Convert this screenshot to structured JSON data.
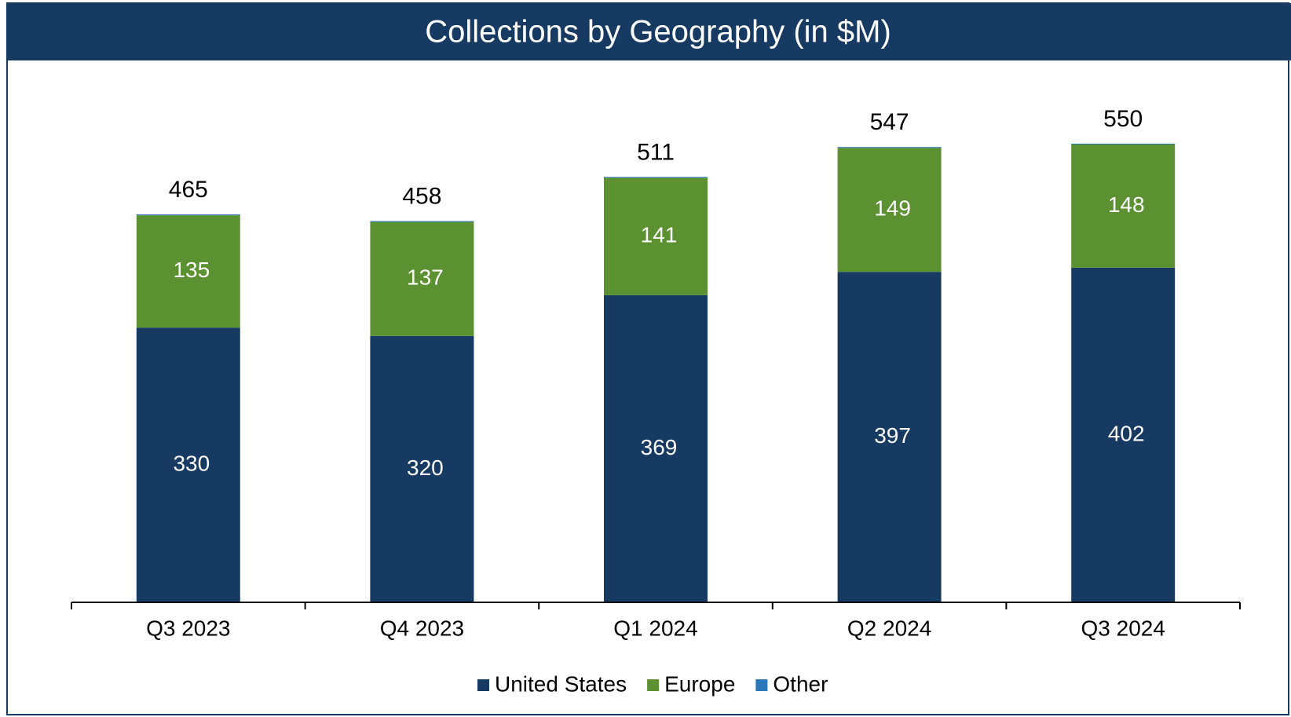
{
  "chart_data": {
    "type": "stacked_bar",
    "title": "Collections by Geography (in $M)",
    "categories": [
      "Q3 2023",
      "Q4 2023",
      "Q1 2024",
      "Q2 2024",
      "Q3 2024"
    ],
    "series": [
      {
        "name": "United States",
        "color": "#173a62",
        "values": [
          330,
          320,
          369,
          397,
          402
        ]
      },
      {
        "name": "Europe",
        "color": "#5b9131",
        "values": [
          135,
          137,
          141,
          149,
          148
        ]
      },
      {
        "name": "Other",
        "color": "#2a78b8",
        "values": [
          1,
          1,
          1,
          1,
          1
        ]
      }
    ],
    "totals": [
      465,
      458,
      511,
      547,
      550
    ]
  }
}
